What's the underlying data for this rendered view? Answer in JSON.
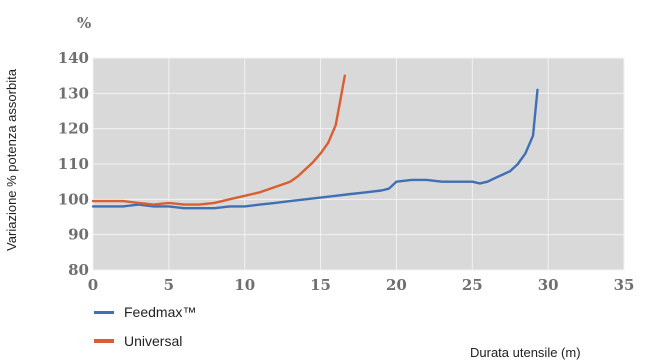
{
  "chart_data": {
    "type": "line",
    "title": "",
    "unit_label": "%",
    "xlabel": "Durata utensile (m)",
    "ylabel": "Variazione % potenza assorbita",
    "xlim": [
      0,
      35
    ],
    "ylim": [
      80,
      140
    ],
    "xticks": [
      0,
      5,
      10,
      15,
      20,
      25,
      30,
      35
    ],
    "yticks": [
      80,
      90,
      100,
      110,
      120,
      130,
      140
    ],
    "grid": true,
    "legend_position": "bottom-left",
    "colors": {
      "plot_bg": "#d9d9d9",
      "grid": "#f2f2f2",
      "feedmax": "#3f6fb5",
      "universal": "#d95f33"
    },
    "series": [
      {
        "name": "Feedmax™",
        "color": "#3f6fb5",
        "x": [
          0,
          1,
          2,
          3,
          4,
          5,
          6,
          7,
          8,
          9,
          10,
          11,
          12,
          13,
          14,
          15,
          16,
          17,
          18,
          19,
          19.5,
          20,
          21,
          22,
          23,
          24,
          25,
          25.5,
          26,
          26.5,
          27,
          27.5,
          28,
          28.5,
          29,
          29.3
        ],
        "y": [
          98,
          98,
          98,
          98.5,
          98,
          98,
          97.5,
          97.5,
          97.5,
          98,
          98,
          98.5,
          99,
          99.5,
          100,
          100.5,
          101,
          101.5,
          102,
          102.5,
          103,
          105,
          105.5,
          105.5,
          105,
          105,
          105,
          104.5,
          105,
          106,
          107,
          108,
          110,
          113,
          118,
          131
        ]
      },
      {
        "name": "Universal",
        "color": "#d95f33",
        "x": [
          0,
          1,
          2,
          3,
          4,
          5,
          6,
          7,
          8,
          9,
          10,
          11,
          12,
          13,
          13.5,
          14,
          14.5,
          15,
          15.5,
          16,
          16.3,
          16.6
        ],
        "y": [
          99.5,
          99.5,
          99.5,
          99,
          98.5,
          99,
          98.5,
          98.5,
          99,
          100,
          101,
          102,
          103.5,
          105,
          106.5,
          108.5,
          110.5,
          113,
          116,
          121,
          128,
          135
        ]
      }
    ]
  }
}
